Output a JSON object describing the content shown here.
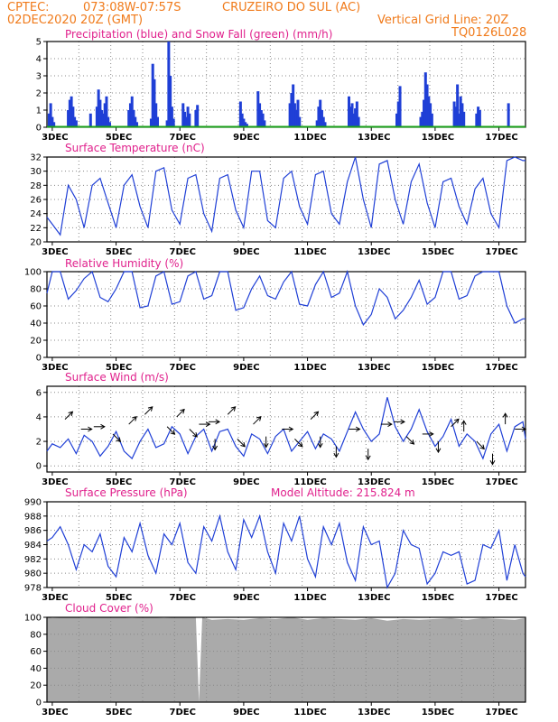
{
  "header": {
    "source": "CPTEC:",
    "coords": "073:08W-07:57S",
    "station": "CRUZEIRO DO SUL (AC)",
    "datetime": "02DEC2020 20Z (GMT)",
    "grid_note": "Vertical Grid Line: 20Z",
    "model_code": "TQ0126L028"
  },
  "colors": {
    "header": "#f07a1a",
    "title": "#e0208c",
    "line": "#1f3fd6",
    "bar": "#1f3fd6",
    "snow": "#1aa01a",
    "cloud": "#aaaaaa"
  },
  "x_axis": {
    "labels": [
      "3DEC",
      "5DEC",
      "7DEC",
      "9DEC",
      "11DEC",
      "13DEC",
      "15DEC",
      "17DEC"
    ]
  },
  "chart_data": [
    {
      "id": "precip",
      "type": "bar",
      "title": "Precipitation (blue) and Snow Fall (green) (mm/h)",
      "ylim": [
        0,
        5
      ],
      "yticks": [
        0,
        1,
        2,
        3,
        4,
        5
      ],
      "x_range_days": [
        2.833,
        17.833
      ],
      "series": [
        {
          "name": "Precipitation",
          "x": [
            2.9,
            2.95,
            3.0,
            3.05,
            3.5,
            3.55,
            3.6,
            3.65,
            3.7,
            3.75,
            4.2,
            4.4,
            4.45,
            4.5,
            4.55,
            4.6,
            4.65,
            4.7,
            4.75,
            4.8,
            5.4,
            5.45,
            5.5,
            5.55,
            5.6,
            5.65,
            6.1,
            6.15,
            6.2,
            6.25,
            6.3,
            6.6,
            6.65,
            6.7,
            6.75,
            6.8,
            7.1,
            7.15,
            7.2,
            7.25,
            7.3,
            7.5,
            7.55,
            8.9,
            8.95,
            9.0,
            9.05,
            9.1,
            9.45,
            9.5,
            9.55,
            9.6,
            9.65,
            10.45,
            10.5,
            10.55,
            10.6,
            10.65,
            10.7,
            10.75,
            11.3,
            11.35,
            11.4,
            11.45,
            11.5,
            11.55,
            12.3,
            12.35,
            12.4,
            12.45,
            12.5,
            12.55,
            12.6,
            13.8,
            13.85,
            13.9,
            14.55,
            14.6,
            14.65,
            14.7,
            14.75,
            14.8,
            14.85,
            14.9,
            15.6,
            15.65,
            15.7,
            15.75,
            15.8,
            15.85,
            15.9,
            16.3,
            16.35,
            16.4,
            17.3
          ],
          "values": [
            0.8,
            1.4,
            0.6,
            0.3,
            1.0,
            1.6,
            1.8,
            1.2,
            0.6,
            0.4,
            0.8,
            1.2,
            2.2,
            1.6,
            1.0,
            0.8,
            1.4,
            1.8,
            0.6,
            0.3,
            1.0,
            1.4,
            1.8,
            1.0,
            0.6,
            0.3,
            0.5,
            3.7,
            2.8,
            1.4,
            0.6,
            0.4,
            5.0,
            3.0,
            1.2,
            0.5,
            1.4,
            0.9,
            0.6,
            1.2,
            0.8,
            1.0,
            1.3,
            1.5,
            0.8,
            0.5,
            0.3,
            0.2,
            2.1,
            1.4,
            1.0,
            0.8,
            0.4,
            1.4,
            2.0,
            2.5,
            1.4,
            1.0,
            1.6,
            0.6,
            0.4,
            1.2,
            1.6,
            1.0,
            0.6,
            0.3,
            1.8,
            1.2,
            1.4,
            0.8,
            1.1,
            1.5,
            0.6,
            0.8,
            1.5,
            2.4,
            0.6,
            0.9,
            1.6,
            3.2,
            2.5,
            1.8,
            1.4,
            0.8,
            1.5,
            1.2,
            2.5,
            0.8,
            1.8,
            1.4,
            0.9,
            0.8,
            1.2,
            1.0,
            1.4
          ]
        },
        {
          "name": "Snow Fall",
          "x": [
            2.833,
            17.833
          ],
          "values": [
            0,
            0
          ]
        }
      ]
    },
    {
      "id": "temperature",
      "type": "line",
      "title": "Surface Temperature (nC)",
      "ylim": [
        20,
        32
      ],
      "yticks": [
        20,
        22,
        24,
        26,
        28,
        30,
        32
      ],
      "series": [
        {
          "name": "Temperature",
          "x": [
            2.833,
            3.0,
            3.25,
            3.5,
            3.75,
            4.0,
            4.25,
            4.5,
            4.75,
            5.0,
            5.25,
            5.5,
            5.75,
            6.0,
            6.25,
            6.5,
            6.75,
            7.0,
            7.25,
            7.5,
            7.75,
            8.0,
            8.25,
            8.5,
            8.75,
            9.0,
            9.25,
            9.5,
            9.75,
            10.0,
            10.25,
            10.5,
            10.75,
            11.0,
            11.25,
            11.5,
            11.75,
            12.0,
            12.25,
            12.5,
            12.75,
            13.0,
            13.25,
            13.5,
            13.75,
            14.0,
            14.25,
            14.5,
            14.75,
            15.0,
            15.25,
            15.5,
            15.75,
            16.0,
            16.25,
            16.5,
            16.75,
            17.0,
            17.25,
            17.5,
            17.75,
            17.833
          ],
          "values": [
            23.5,
            22.5,
            21.0,
            28.0,
            26.0,
            22.0,
            28.0,
            29.0,
            25.5,
            22.0,
            28.0,
            29.5,
            25.0,
            22.0,
            30.0,
            30.5,
            24.5,
            22.5,
            29.0,
            29.5,
            24.0,
            21.5,
            29.0,
            29.5,
            24.5,
            22.0,
            30.0,
            30.0,
            23.0,
            22.0,
            29.0,
            30.0,
            25.0,
            22.5,
            29.5,
            30.0,
            24.0,
            22.5,
            28.5,
            32.0,
            26.0,
            22.0,
            31.0,
            31.5,
            26.0,
            22.5,
            28.5,
            31.0,
            25.5,
            22.0,
            28.5,
            29.0,
            25.0,
            22.5,
            27.5,
            29.0,
            24.0,
            22.0,
            31.5,
            32.0,
            31.5,
            31.5
          ]
        }
      ]
    },
    {
      "id": "humidity",
      "type": "line",
      "title": "Relative Humidity (%)",
      "ylim": [
        0,
        100
      ],
      "yticks": [
        0,
        20,
        40,
        60,
        80,
        100
      ],
      "series": [
        {
          "name": "Relative Humidity",
          "x": [
            2.833,
            3.0,
            3.25,
            3.5,
            3.75,
            4.0,
            4.25,
            4.5,
            4.75,
            5.0,
            5.25,
            5.5,
            5.75,
            6.0,
            6.25,
            6.5,
            6.75,
            7.0,
            7.25,
            7.5,
            7.75,
            8.0,
            8.25,
            8.5,
            8.75,
            9.0,
            9.25,
            9.5,
            9.75,
            10.0,
            10.25,
            10.5,
            10.75,
            11.0,
            11.25,
            11.5,
            11.75,
            12.0,
            12.25,
            12.5,
            12.75,
            13.0,
            13.25,
            13.5,
            13.75,
            14.0,
            14.25,
            14.5,
            14.75,
            15.0,
            15.25,
            15.5,
            15.75,
            16.0,
            16.25,
            16.5,
            16.75,
            17.0,
            17.25,
            17.5,
            17.75,
            17.833
          ],
          "values": [
            75,
            100,
            100,
            68,
            78,
            92,
            100,
            70,
            65,
            80,
            100,
            100,
            58,
            60,
            95,
            100,
            62,
            65,
            95,
            100,
            68,
            72,
            100,
            100,
            55,
            58,
            80,
            95,
            72,
            68,
            88,
            100,
            62,
            60,
            85,
            100,
            70,
            75,
            100,
            60,
            38,
            50,
            80,
            70,
            45,
            55,
            70,
            90,
            62,
            70,
            100,
            100,
            68,
            72,
            95,
            100,
            100,
            100,
            60,
            40,
            45,
            45
          ]
        }
      ]
    },
    {
      "id": "wind",
      "type": "line",
      "title": "Surface Wind (m/s)",
      "ylim": [
        -0.5,
        6.5
      ],
      "yticks": [
        0,
        2,
        4,
        6
      ],
      "series": [
        {
          "name": "Wind Speed",
          "x": [
            2.833,
            3.0,
            3.25,
            3.5,
            3.75,
            4.0,
            4.25,
            4.5,
            4.75,
            5.0,
            5.25,
            5.5,
            5.75,
            6.0,
            6.25,
            6.5,
            6.75,
            7.0,
            7.25,
            7.5,
            7.75,
            8.0,
            8.25,
            8.5,
            8.75,
            9.0,
            9.25,
            9.5,
            9.75,
            10.0,
            10.25,
            10.5,
            10.75,
            11.0,
            11.25,
            11.5,
            11.75,
            12.0,
            12.25,
            12.5,
            12.75,
            13.0,
            13.25,
            13.5,
            13.75,
            14.0,
            14.25,
            14.5,
            14.75,
            15.0,
            15.25,
            15.5,
            15.75,
            16.0,
            16.25,
            16.5,
            16.75,
            17.0,
            17.25,
            17.5,
            17.75,
            17.833
          ],
          "values": [
            1.2,
            1.8,
            1.5,
            2.2,
            1.0,
            2.5,
            2.0,
            0.8,
            1.6,
            2.8,
            1.2,
            0.6,
            2.0,
            3.0,
            1.5,
            1.8,
            3.2,
            2.6,
            1.0,
            2.4,
            3.0,
            1.2,
            2.8,
            3.0,
            1.6,
            0.8,
            2.6,
            2.2,
            1.0,
            2.4,
            3.0,
            1.2,
            2.0,
            2.8,
            1.4,
            2.6,
            2.2,
            1.2,
            2.8,
            4.4,
            3.0,
            2.0,
            2.6,
            5.6,
            3.2,
            2.0,
            3.0,
            4.6,
            2.8,
            1.6,
            2.4,
            3.8,
            1.6,
            2.6,
            2.0,
            0.6,
            2.6,
            3.4,
            1.2,
            3.2,
            3.6,
            2.2
          ]
        }
      ],
      "arrows": [
        {
          "x": 3.4,
          "y": 3.8,
          "dir": "ne"
        },
        {
          "x": 3.9,
          "y": 3.0,
          "dir": "e"
        },
        {
          "x": 4.3,
          "y": 3.2,
          "dir": "e"
        },
        {
          "x": 4.9,
          "y": 2.6,
          "dir": "se"
        },
        {
          "x": 5.4,
          "y": 3.4,
          "dir": "ne"
        },
        {
          "x": 5.9,
          "y": 4.2,
          "dir": "ne"
        },
        {
          "x": 6.6,
          "y": 3.2,
          "dir": "se"
        },
        {
          "x": 6.9,
          "y": 4.0,
          "dir": "ne"
        },
        {
          "x": 7.3,
          "y": 3.0,
          "dir": "se"
        },
        {
          "x": 7.6,
          "y": 3.4,
          "dir": "e"
        },
        {
          "x": 7.9,
          "y": 3.6,
          "dir": "e"
        },
        {
          "x": 8.1,
          "y": 2.2,
          "dir": "s"
        },
        {
          "x": 8.5,
          "y": 4.2,
          "dir": "ne"
        },
        {
          "x": 8.8,
          "y": 2.2,
          "dir": "se"
        },
        {
          "x": 9.3,
          "y": 3.4,
          "dir": "ne"
        },
        {
          "x": 9.7,
          "y": 2.4,
          "dir": "s"
        },
        {
          "x": 10.2,
          "y": 3.0,
          "dir": "e"
        },
        {
          "x": 10.6,
          "y": 2.2,
          "dir": "se"
        },
        {
          "x": 11.1,
          "y": 3.8,
          "dir": "ne"
        },
        {
          "x": 11.4,
          "y": 2.4,
          "dir": "s"
        },
        {
          "x": 11.9,
          "y": 1.6,
          "dir": "s"
        },
        {
          "x": 12.3,
          "y": 3.0,
          "dir": "e"
        },
        {
          "x": 12.9,
          "y": 1.4,
          "dir": "s"
        },
        {
          "x": 13.3,
          "y": 3.4,
          "dir": "e"
        },
        {
          "x": 13.7,
          "y": 3.6,
          "dir": "e"
        },
        {
          "x": 14.1,
          "y": 2.4,
          "dir": "se"
        },
        {
          "x": 14.6,
          "y": 2.6,
          "dir": "e"
        },
        {
          "x": 15.1,
          "y": 2.0,
          "dir": "s"
        },
        {
          "x": 15.5,
          "y": 3.2,
          "dir": "ne"
        },
        {
          "x": 15.9,
          "y": 2.8,
          "dir": "n"
        },
        {
          "x": 16.3,
          "y": 2.0,
          "dir": "se"
        },
        {
          "x": 16.8,
          "y": 1.0,
          "dir": "s"
        },
        {
          "x": 17.2,
          "y": 3.4,
          "dir": "n"
        },
        {
          "x": 17.5,
          "y": 3.0,
          "dir": "e"
        }
      ]
    },
    {
      "id": "pressure",
      "type": "line",
      "title": "Surface Pressure (hPa)",
      "annotation": "Model Altitude: 215.824 m",
      "ylim": [
        978,
        990
      ],
      "yticks": [
        978,
        980,
        982,
        984,
        986,
        988,
        990
      ],
      "series": [
        {
          "name": "Surface Pressure",
          "x": [
            2.833,
            3.0,
            3.25,
            3.5,
            3.75,
            4.0,
            4.25,
            4.5,
            4.75,
            5.0,
            5.25,
            5.5,
            5.75,
            6.0,
            6.25,
            6.5,
            6.75,
            7.0,
            7.25,
            7.5,
            7.75,
            8.0,
            8.25,
            8.5,
            8.75,
            9.0,
            9.25,
            9.5,
            9.75,
            10.0,
            10.25,
            10.5,
            10.75,
            11.0,
            11.25,
            11.5,
            11.75,
            12.0,
            12.25,
            12.5,
            12.75,
            13.0,
            13.25,
            13.5,
            13.75,
            14.0,
            14.25,
            14.5,
            14.75,
            15.0,
            15.25,
            15.5,
            15.75,
            16.0,
            16.25,
            16.5,
            16.75,
            17.0,
            17.25,
            17.5,
            17.75,
            17.833
          ],
          "values": [
            984.5,
            985.0,
            986.5,
            984.0,
            980.5,
            984.0,
            983.0,
            985.5,
            981.0,
            979.5,
            985.0,
            983.0,
            987.0,
            982.5,
            980.0,
            985.5,
            984.0,
            987.0,
            981.5,
            980.0,
            986.5,
            984.5,
            988.0,
            983.0,
            980.5,
            987.5,
            985.0,
            988.0,
            983.0,
            980.0,
            987.0,
            984.5,
            988.0,
            982.0,
            979.5,
            986.5,
            984.0,
            987.0,
            981.5,
            979.0,
            986.5,
            984.0,
            984.5,
            978.0,
            980.0,
            986.0,
            984.0,
            983.5,
            978.5,
            980.0,
            983.0,
            982.5,
            983.0,
            978.5,
            979.0,
            984.0,
            983.5,
            986.0,
            979.0,
            984.0,
            980.0,
            979.5
          ]
        }
      ]
    },
    {
      "id": "cloud",
      "type": "area",
      "title": "Cloud Cover (%)",
      "ylim": [
        0,
        100
      ],
      "yticks": [
        0,
        20,
        40,
        60,
        80,
        100
      ],
      "series": [
        {
          "name": "Cloud Cover",
          "x": [
            2.833,
            3.0,
            3.5,
            4.0,
            4.5,
            5.0,
            5.5,
            6.0,
            6.5,
            7.0,
            7.5,
            7.6,
            7.7,
            8.0,
            8.5,
            9.0,
            9.5,
            10.0,
            10.5,
            11.0,
            11.5,
            12.0,
            12.5,
            13.0,
            13.5,
            14.0,
            14.5,
            15.0,
            15.5,
            16.0,
            16.5,
            17.0,
            17.5,
            17.833
          ],
          "values": [
            100,
            99,
            100,
            99,
            100,
            100,
            99,
            100,
            99,
            100,
            100,
            0,
            100,
            97,
            98,
            97,
            99,
            98,
            100,
            97,
            99,
            98,
            97,
            99,
            96,
            98,
            97,
            98,
            99,
            97,
            99,
            98,
            97,
            99
          ]
        }
      ]
    }
  ]
}
